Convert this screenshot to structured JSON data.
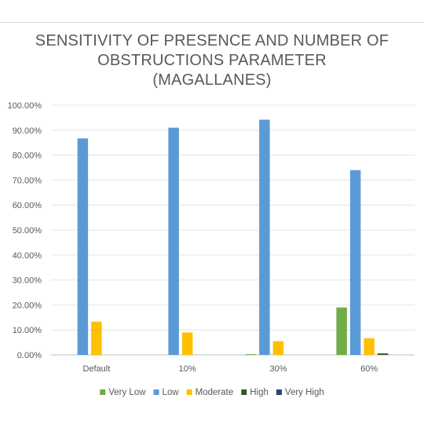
{
  "chart_data": {
    "type": "bar",
    "title_lines": [
      "SENSITIVITY OF PRESENCE AND NUMBER OF",
      "OBSTRUCTIONS PARAMETER",
      "(MAGALLANES)"
    ],
    "categories": [
      "Default",
      "10%",
      "30%",
      "60%"
    ],
    "series": [
      {
        "name": "Very Low",
        "color": "#70ad47",
        "values": [
          0,
          0,
          0.3,
          19.0
        ]
      },
      {
        "name": "Low",
        "color": "#5b9bd5",
        "values": [
          86.7,
          91.0,
          94.2,
          74.0
        ]
      },
      {
        "name": "Moderate",
        "color": "#ffc000",
        "values": [
          13.3,
          9.0,
          5.5,
          6.7
        ]
      },
      {
        "name": "High",
        "color": "#375623",
        "values": [
          0,
          0,
          0,
          0.6
        ]
      },
      {
        "name": "Very High",
        "color": "#264478",
        "values": [
          0,
          0,
          0,
          0
        ]
      }
    ],
    "yticks": [
      "0.00%",
      "10.00%",
      "20.00%",
      "30.00%",
      "40.00%",
      "50.00%",
      "60.00%",
      "70.00%",
      "80.00%",
      "90.00%",
      "100.00%"
    ],
    "ylim": [
      0,
      100
    ],
    "grid": true,
    "legend_position": "bottom"
  }
}
